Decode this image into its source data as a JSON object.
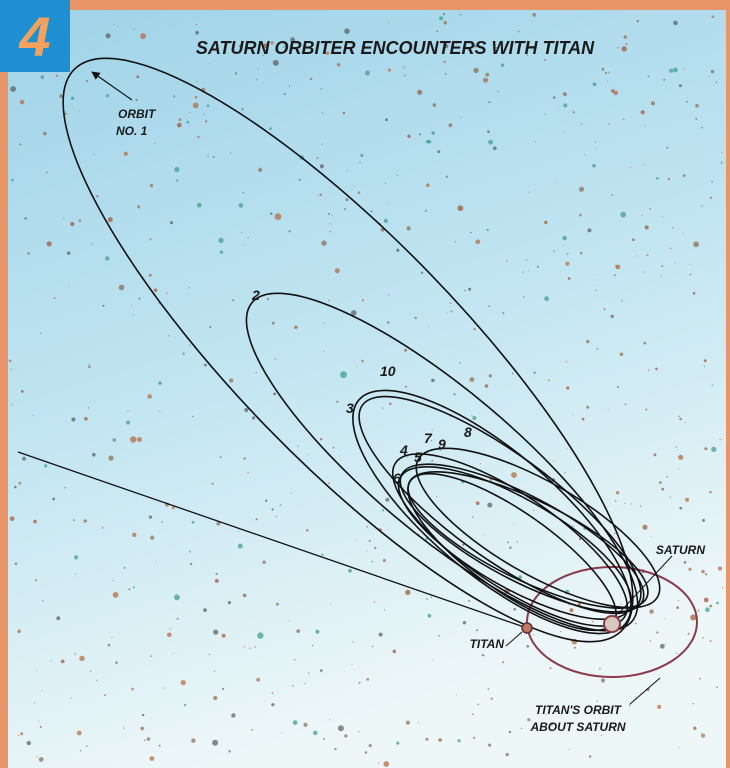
{
  "badge": "4",
  "title": "SATURN ORBITER ENCOUNTERS WITH TITAN",
  "labels": {
    "orbit_1": [
      "ORBIT",
      "NO. 1"
    ],
    "saturn": "SATURN",
    "titan": "TITAN",
    "titans_orbit": [
      "TITAN'S ORBIT",
      "ABOUT SATURN"
    ]
  },
  "orbit_numbers": [
    "2",
    "3",
    "4",
    "5",
    "6",
    "7",
    "8",
    "9",
    "10"
  ]
}
